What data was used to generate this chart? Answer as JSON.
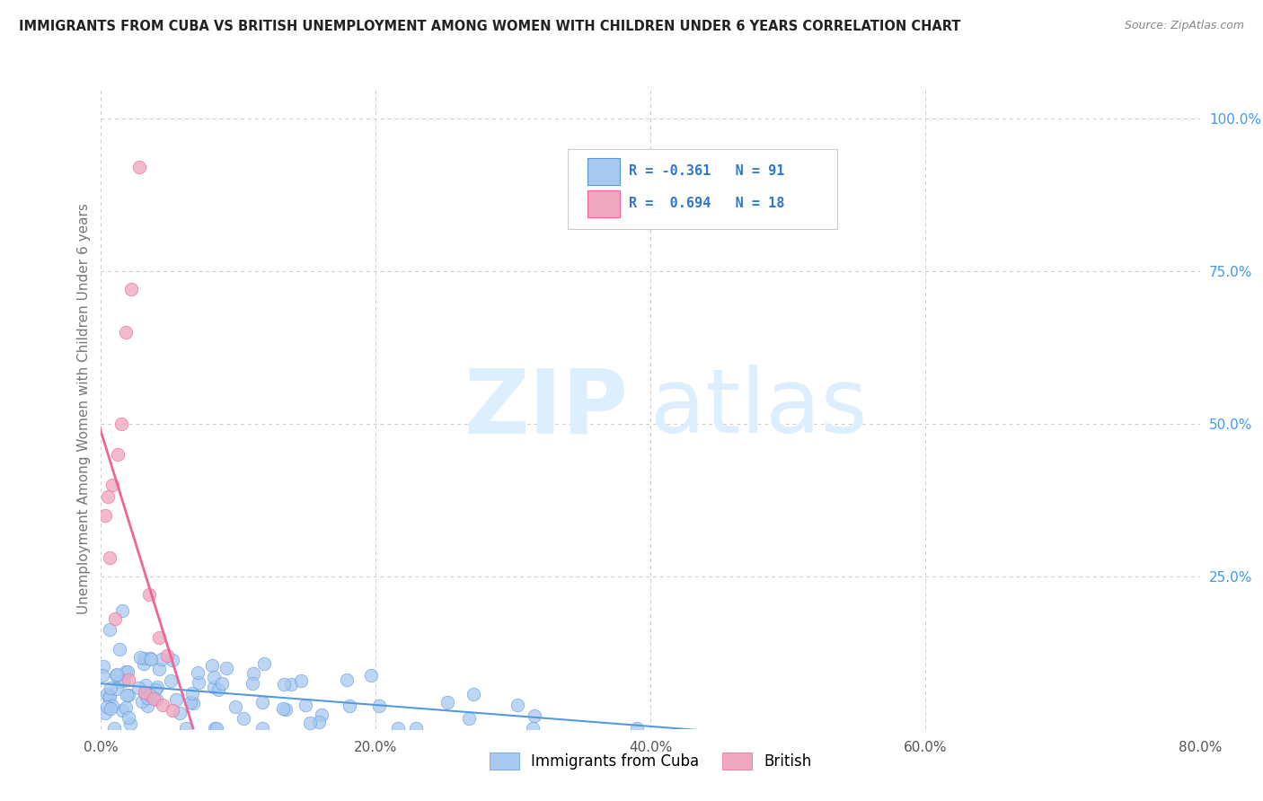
{
  "title": "IMMIGRANTS FROM CUBA VS BRITISH UNEMPLOYMENT AMONG WOMEN WITH CHILDREN UNDER 6 YEARS CORRELATION CHART",
  "source": "Source: ZipAtlas.com",
  "ylabel": "Unemployment Among Women with Children Under 6 years",
  "xlim": [
    0.0,
    0.8
  ],
  "ylim": [
    0.0,
    1.05
  ],
  "xtick_labels": [
    "0.0%",
    "20.0%",
    "40.0%",
    "60.0%",
    "80.0%"
  ],
  "xtick_vals": [
    0.0,
    0.2,
    0.4,
    0.6,
    0.8
  ],
  "ytick_labels": [
    "25.0%",
    "50.0%",
    "75.0%",
    "100.0%"
  ],
  "ytick_vals": [
    0.25,
    0.5,
    0.75,
    1.0
  ],
  "legend_R_blue": "-0.361",
  "legend_N_blue": "91",
  "legend_R_pink": "0.694",
  "legend_N_pink": "18",
  "blue_scatter_color": "#a8c8f0",
  "pink_scatter_color": "#f0a8c0",
  "blue_line_color": "#5599dd",
  "pink_line_color": "#ee6699",
  "background_color": "#ffffff",
  "grid_color": "#cccccc",
  "title_color": "#222222",
  "source_color": "#888888",
  "axis_label_color": "#777777",
  "tick_color_right": "#4499ee",
  "legend_text_color": "#3377cc",
  "seed": 42,
  "blue_n": 91,
  "pink_n": 18
}
